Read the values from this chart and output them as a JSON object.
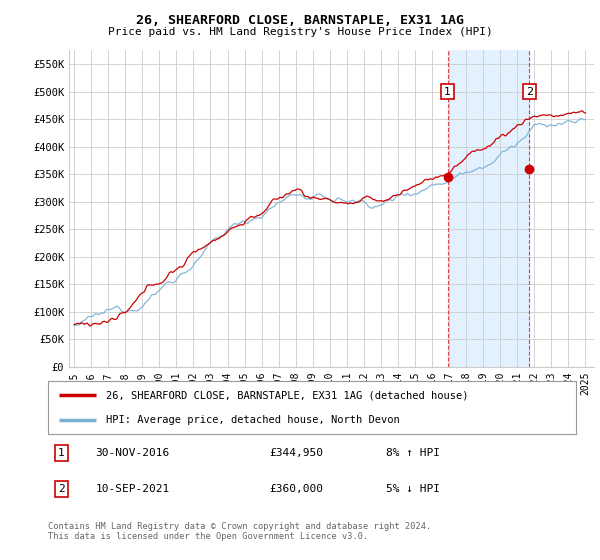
{
  "title": "26, SHEARFORD CLOSE, BARNSTAPLE, EX31 1AG",
  "subtitle": "Price paid vs. HM Land Registry's House Price Index (HPI)",
  "ylabel_ticks": [
    "£0",
    "£50K",
    "£100K",
    "£150K",
    "£200K",
    "£250K",
    "£300K",
    "£350K",
    "£400K",
    "£450K",
    "£500K",
    "£550K"
  ],
  "ytick_vals": [
    0,
    50000,
    100000,
    150000,
    200000,
    250000,
    300000,
    350000,
    400000,
    450000,
    500000,
    550000
  ],
  "ylim": [
    0,
    575000
  ],
  "xlim_start": 1994.7,
  "xlim_end": 2025.5,
  "transaction1": {
    "num": "1",
    "date": "30-NOV-2016",
    "price": "£344,950",
    "hpi": "8% ↑ HPI",
    "year": 2016.92
  },
  "transaction2": {
    "num": "2",
    "date": "10-SEP-2021",
    "price": "£360,000",
    "hpi": "5% ↓ HPI",
    "year": 2021.7
  },
  "t1_price": 344950,
  "t2_price": 360000,
  "legend_line1": "26, SHEARFORD CLOSE, BARNSTAPLE, EX31 1AG (detached house)",
  "legend_line2": "HPI: Average price, detached house, North Devon",
  "footer": "Contains HM Land Registry data © Crown copyright and database right 2024.\nThis data is licensed under the Open Government Licence v3.0.",
  "red_color": "#cc0000",
  "blue_color": "#7ab0d4",
  "shading_color": "#ddeeff",
  "grid_color": "#cccccc",
  "transaction_box_color": "#cc0000",
  "background_color": "#ffffff"
}
